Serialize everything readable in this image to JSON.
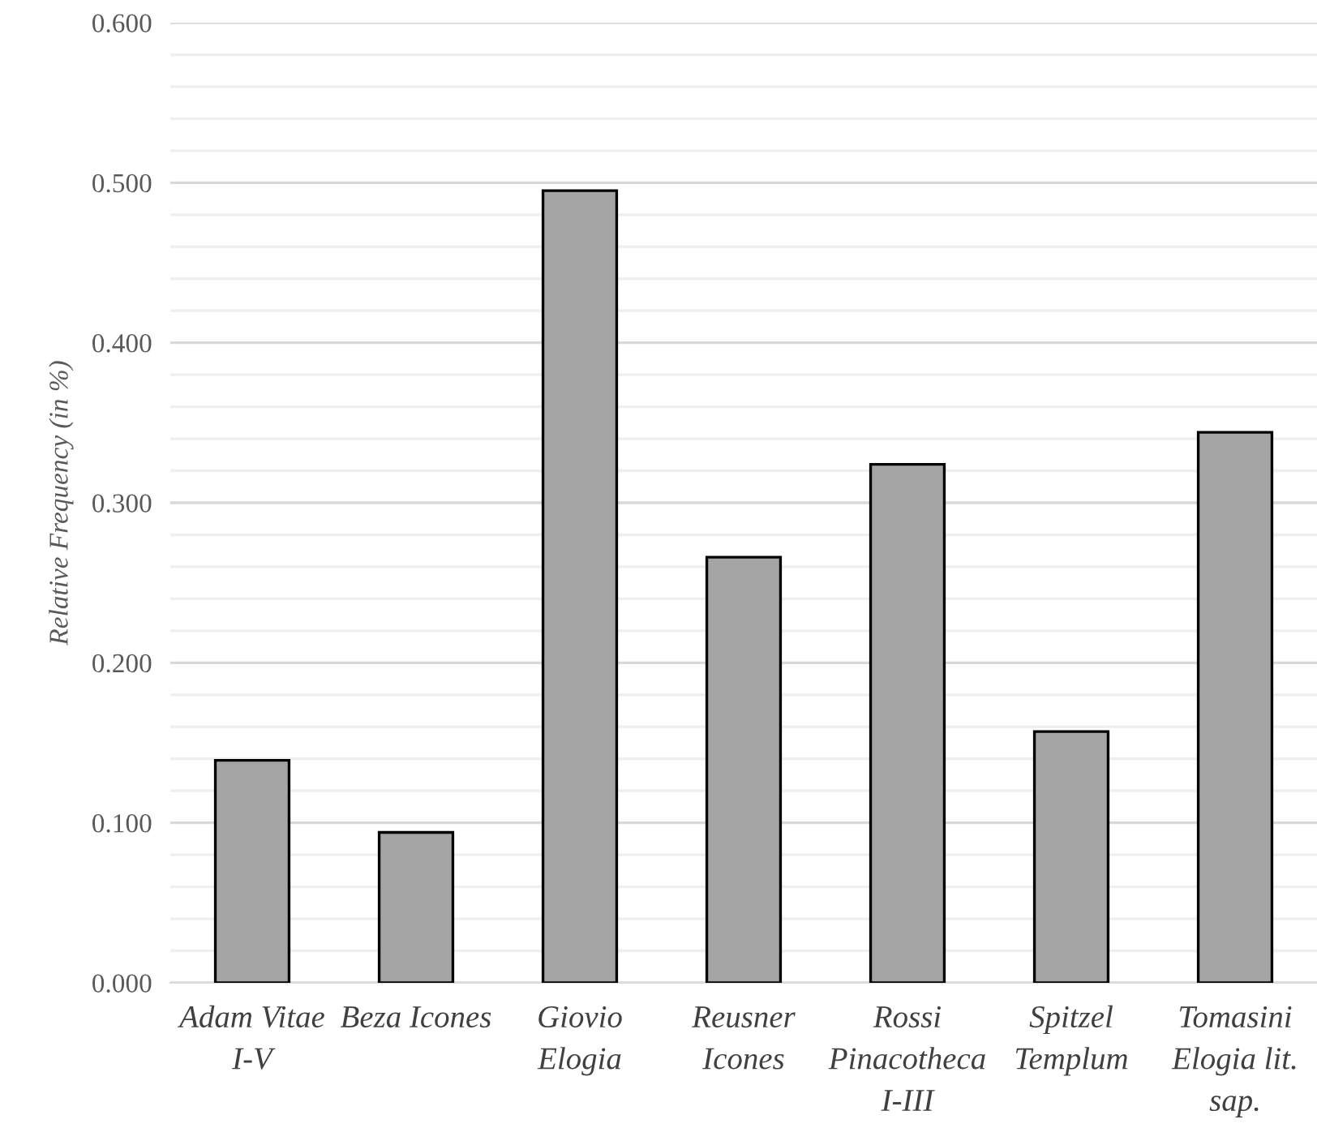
{
  "chart_data": {
    "type": "bar",
    "ylabel": "Relative Frequency (in %)",
    "categories": [
      "Adam Vitae I-V",
      "Beza Icones",
      "Giovio Elogia",
      "Reusner Icones",
      "Rossi Pinacotheca I-III",
      "Spitzel Templum",
      "Tomasini Elogia lit. sap."
    ],
    "values": [
      0.139,
      0.094,
      0.495,
      0.266,
      0.324,
      0.157,
      0.344
    ],
    "color": "#a5a5a5",
    "ylim": [
      0,
      0.6
    ],
    "yticks": [
      {
        "value": 0,
        "label": "0.000"
      },
      {
        "value": 0.02,
        "label": null
      },
      {
        "value": 0.04,
        "label": null
      },
      {
        "value": 0.06,
        "label": null
      },
      {
        "value": 0.08,
        "label": null
      },
      {
        "value": 0.1,
        "label": "0.100"
      },
      {
        "value": 0.12,
        "label": null
      },
      {
        "value": 0.14,
        "label": null
      },
      {
        "value": 0.16,
        "label": null
      },
      {
        "value": 0.18,
        "label": null
      },
      {
        "value": 0.2,
        "label": "0.200"
      },
      {
        "value": 0.22,
        "label": null
      },
      {
        "value": 0.24,
        "label": null
      },
      {
        "value": 0.26,
        "label": null
      },
      {
        "value": 0.28,
        "label": null
      },
      {
        "value": 0.3,
        "label": "0.300"
      },
      {
        "value": 0.32,
        "label": null
      },
      {
        "value": 0.34,
        "label": null
      },
      {
        "value": 0.36,
        "label": null
      },
      {
        "value": 0.38,
        "label": null
      },
      {
        "value": 0.4,
        "label": "0.400"
      },
      {
        "value": 0.42,
        "label": null
      },
      {
        "value": 0.44,
        "label": null
      },
      {
        "value": 0.46,
        "label": null
      },
      {
        "value": 0.48,
        "label": null
      },
      {
        "value": 0.5,
        "label": "0.500"
      },
      {
        "value": 0.52,
        "label": null
      },
      {
        "value": 0.54,
        "label": null
      },
      {
        "value": 0.56,
        "label": null
      },
      {
        "value": 0.58,
        "label": null
      },
      {
        "value": 0.6,
        "label": "0.600"
      }
    ],
    "grid": "y"
  }
}
